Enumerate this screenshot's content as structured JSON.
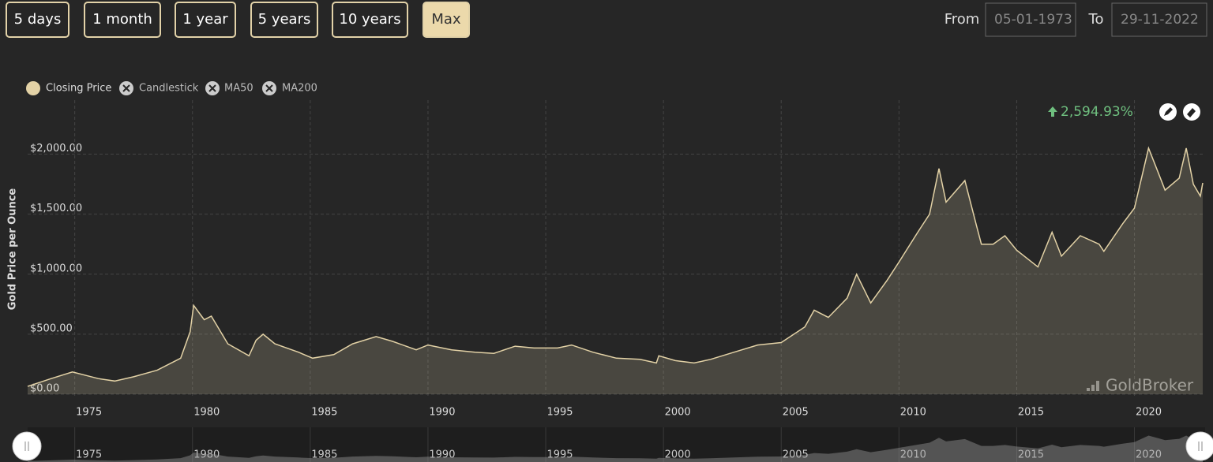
{
  "ui": {
    "ranges": [
      {
        "label": "5 days",
        "selected": false
      },
      {
        "label": "1 month",
        "selected": false
      },
      {
        "label": "1 year",
        "selected": false
      },
      {
        "label": "5 years",
        "selected": false
      },
      {
        "label": "10 years",
        "selected": false
      },
      {
        "label": "Max",
        "selected": true
      }
    ],
    "from_label": "From",
    "from_value": "05-01-1973",
    "to_label": "To",
    "to_value": "29-11-2022",
    "legend_hidden": [
      "Candlestick",
      "MA50",
      "MA200"
    ],
    "change": "2,594.93%",
    "watermark": "GoldBroker"
  },
  "chart_data": {
    "type": "area",
    "y_label": "Gold Price per Ounce",
    "x": [
      1973.0,
      1974.0,
      1974.9,
      1976.0,
      1976.7,
      1977.5,
      1978.5,
      1979.5,
      1979.9,
      1980.05,
      1980.5,
      1980.8,
      1981.5,
      1982.4,
      1982.7,
      1983.0,
      1983.5,
      1984.5,
      1985.1,
      1986.0,
      1986.8,
      1987.8,
      1988.5,
      1989.5,
      1990.0,
      1991.0,
      1992.0,
      1992.8,
      1993.7,
      1994.5,
      1995.5,
      1996.1,
      1997.0,
      1998.0,
      1999.0,
      1999.7,
      1999.8,
      2000.5,
      2001.3,
      2002.0,
      2003.0,
      2004.0,
      2005.0,
      2006.0,
      2006.4,
      2007.0,
      2007.8,
      2008.2,
      2008.8,
      2009.5,
      2010.0,
      2010.8,
      2011.3,
      2011.7,
      2012.0,
      2012.8,
      2013.3,
      2013.5,
      2014.0,
      2014.5,
      2015.0,
      2015.9,
      2016.5,
      2016.9,
      2017.7,
      2018.5,
      2018.7,
      2019.5,
      2020.0,
      2020.6,
      2021.0,
      2021.3,
      2021.9,
      2022.2,
      2022.5,
      2022.8,
      2022.9
    ],
    "series": [
      {
        "name": "Closing Price",
        "color": "#e3d2a6",
        "values": [
          65,
          130,
          185,
          130,
          110,
          145,
          200,
          300,
          520,
          740,
          620,
          650,
          420,
          320,
          450,
          500,
          420,
          350,
          300,
          330,
          420,
          480,
          440,
          370,
          410,
          370,
          350,
          340,
          400,
          385,
          385,
          410,
          350,
          300,
          290,
          260,
          320,
          280,
          260,
          290,
          350,
          410,
          430,
          560,
          700,
          640,
          800,
          1000,
          760,
          950,
          1100,
          1350,
          1500,
          1880,
          1600,
          1780,
          1400,
          1250,
          1250,
          1320,
          1200,
          1060,
          1350,
          1150,
          1320,
          1250,
          1190,
          1420,
          1550,
          2050,
          1850,
          1700,
          1800,
          2050,
          1750,
          1650,
          1760
        ]
      }
    ],
    "xlim": [
      1973,
      2023
    ],
    "ylim": [
      0,
      2450
    ],
    "xticks": [
      1975,
      1980,
      1985,
      1990,
      1995,
      2000,
      2005,
      2010,
      2015,
      2020
    ],
    "yticks": [
      {
        "value": 0,
        "label": "$0.00"
      },
      {
        "value": 500,
        "label": "$500.00"
      },
      {
        "value": 1000,
        "label": "$1,000.00"
      },
      {
        "value": 1500,
        "label": "$1,500.00"
      },
      {
        "value": 2000,
        "label": "$2,000.00"
      }
    ],
    "grid": true
  }
}
